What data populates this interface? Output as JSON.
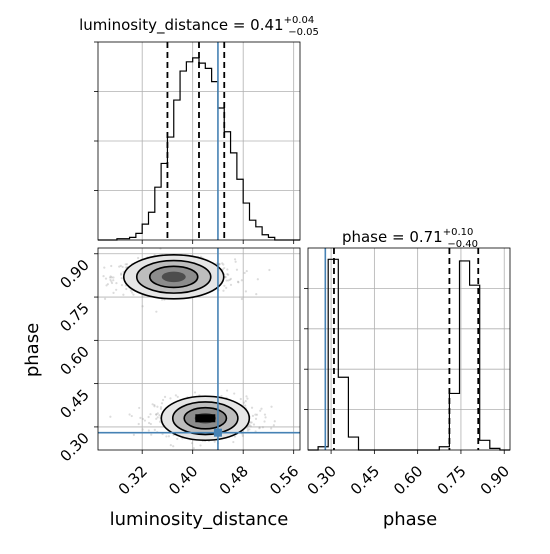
{
  "chart_data": [
    {
      "panel": "luminosity_distance-marginal",
      "type": "histogram",
      "title": {
        "main": "luminosity_distance = 0.41",
        "sup": "+0.04",
        "sub": "−0.05"
      },
      "xlim": [
        0.25,
        0.57
      ],
      "xticks": [
        0.32,
        0.4,
        0.48,
        0.56
      ],
      "bin_edges": [
        0.25,
        0.26,
        0.27,
        0.28,
        0.29,
        0.3,
        0.31,
        0.32,
        0.33,
        0.34,
        0.35,
        0.36,
        0.37,
        0.38,
        0.39,
        0.4,
        0.41,
        0.42,
        0.43,
        0.44,
        0.45,
        0.46,
        0.47,
        0.48,
        0.49,
        0.5,
        0.51,
        0.52,
        0.53,
        0.54,
        0.55,
        0.56,
        0.57
      ],
      "counts": [
        0,
        0,
        0,
        1,
        1,
        2,
        5,
        12,
        21,
        40,
        58,
        78,
        106,
        128,
        135,
        138,
        134,
        130,
        120,
        100,
        82,
        66,
        46,
        28,
        15,
        10,
        4,
        2,
        0,
        0,
        0,
        0
      ],
      "ylim": [
        0,
        150
      ],
      "quantiles": [
        0.36,
        0.41,
        0.45
      ],
      "truth": 0.44
    },
    {
      "panel": "phase-vs-luminosity_distance",
      "type": "scatter",
      "xlabel": "luminosity_distance",
      "ylabel": "phase",
      "xlim": [
        0.25,
        0.57
      ],
      "ylim": [
        0.22,
        0.92
      ],
      "xticks": [
        0.32,
        0.4,
        0.48,
        0.56
      ],
      "yticks": [
        0.3,
        0.45,
        0.6,
        0.75,
        0.9
      ],
      "modes": [
        {
          "x_center": 0.37,
          "y_center": 0.82,
          "note": "upper mode"
        },
        {
          "x_center": 0.42,
          "y_center": 0.33,
          "note": "lower mode"
        }
      ],
      "truth": {
        "x": 0.44,
        "y": 0.28
      }
    },
    {
      "panel": "phase-marginal",
      "type": "histogram",
      "title": {
        "main": "phase = 0.71",
        "sup": "+0.10",
        "sub": "−0.40"
      },
      "xlabel": "phase",
      "xlim": [
        0.22,
        0.92
      ],
      "xticks": [
        0.3,
        0.45,
        0.6,
        0.75,
        0.9
      ],
      "bin_edges": [
        0.22,
        0.255,
        0.29,
        0.325,
        0.36,
        0.395,
        0.43,
        0.465,
        0.5,
        0.535,
        0.57,
        0.605,
        0.64,
        0.675,
        0.71,
        0.745,
        0.78,
        0.815,
        0.85,
        0.885,
        0.92
      ],
      "counts": [
        0,
        2,
        118,
        45,
        8,
        0,
        0,
        0,
        0,
        0,
        0,
        0,
        0,
        2,
        35,
        117,
        102,
        6,
        1,
        0
      ],
      "ylim": [
        0,
        125
      ],
      "quantiles": [
        0.31,
        0.71,
        0.81
      ],
      "truth": 0.28
    }
  ]
}
